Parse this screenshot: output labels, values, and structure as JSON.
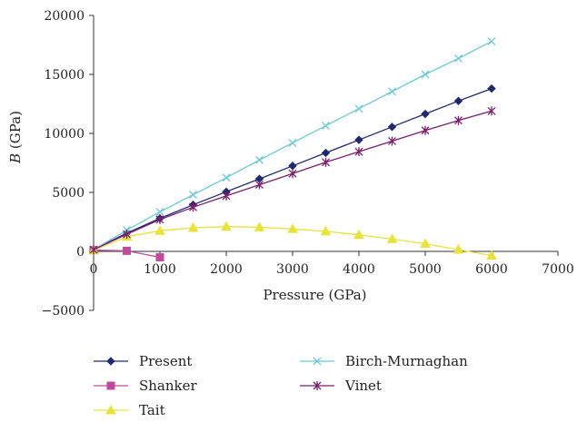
{
  "chart_data": {
    "type": "line",
    "xlabel": "Pressure (GPa)",
    "ylabel": {
      "italic": "B",
      "rest": " (GPa)"
    },
    "xlim": [
      0,
      7000
    ],
    "ylim": [
      -5000,
      20000
    ],
    "x_ticks": [
      0,
      1000,
      2000,
      3000,
      4000,
      5000,
      6000,
      7000
    ],
    "y_ticks": [
      -5000,
      0,
      5000,
      10000,
      15000,
      20000
    ],
    "grid": false,
    "legend_position": "bottom",
    "series": [
      {
        "name": "Present",
        "color": "#1f2a6e",
        "marker": "diamond",
        "x": [
          0,
          500,
          1000,
          1500,
          2000,
          2500,
          3000,
          3500,
          4000,
          4500,
          5000,
          5500,
          6000
        ],
        "y": [
          150,
          1550,
          2800,
          3950,
          5050,
          6150,
          7250,
          8350,
          9450,
          10550,
          11650,
          12750,
          13800
        ]
      },
      {
        "name": "Shanker",
        "color": "#c04a9c",
        "marker": "square",
        "x": [
          0,
          500,
          1000
        ],
        "y": [
          100,
          50,
          -500
        ]
      },
      {
        "name": "Tait",
        "color": "#e8e23c",
        "marker": "triangle",
        "x": [
          0,
          500,
          1000,
          1500,
          2000,
          2500,
          3000,
          3500,
          4000,
          4500,
          5000,
          5500,
          6000
        ],
        "y": [
          100,
          1250,
          1750,
          2000,
          2100,
          2050,
          1900,
          1700,
          1400,
          1050,
          650,
          150,
          -350
        ]
      },
      {
        "name": "Birch-Murnaghan",
        "color": "#6cc8d8",
        "marker": "x",
        "x": [
          0,
          500,
          1000,
          1500,
          2000,
          2500,
          3000,
          3500,
          4000,
          4500,
          5000,
          5500,
          6000
        ],
        "y": [
          150,
          1800,
          3350,
          4800,
          6250,
          7750,
          9200,
          10650,
          12100,
          13550,
          15000,
          16350,
          17800
        ]
      },
      {
        "name": "Vinet",
        "color": "#7a1f6e",
        "marker": "star",
        "x": [
          0,
          500,
          1000,
          1500,
          2000,
          2500,
          3000,
          3500,
          4000,
          4500,
          5000,
          5500,
          6000
        ],
        "y": [
          150,
          1450,
          2700,
          3750,
          4700,
          5650,
          6600,
          7550,
          8450,
          9350,
          10250,
          11100,
          11900
        ]
      }
    ]
  }
}
